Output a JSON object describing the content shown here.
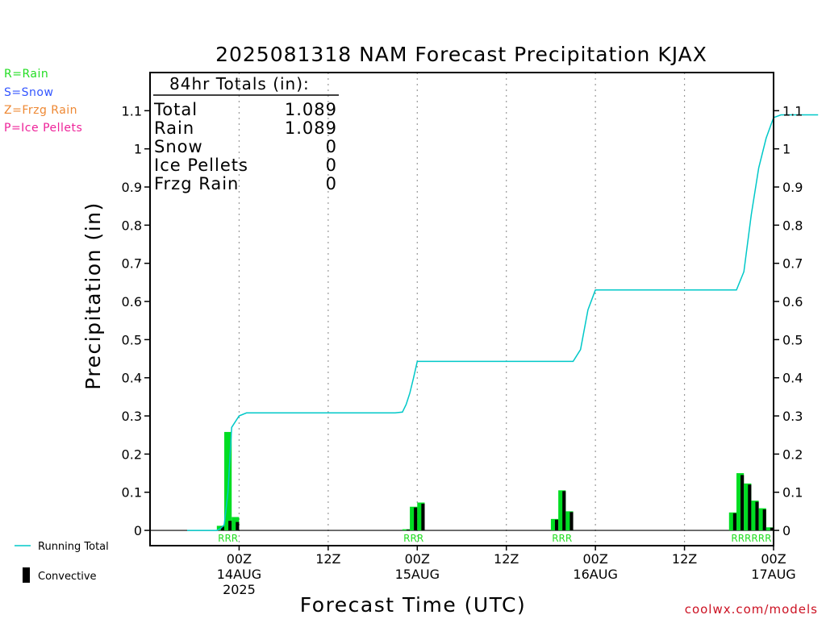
{
  "chart_data": {
    "type": "bar",
    "title": "2025081318 NAM Forecast Precipitation KJAX",
    "xlabel": "Forecast Time (UTC)",
    "ylabel": "Precipitation (in)",
    "ylim": [
      -0.04,
      1.2
    ],
    "yticks": [
      0,
      0.1,
      0.2,
      0.3,
      0.4,
      0.5,
      0.6,
      0.7,
      0.8,
      0.9,
      1,
      1.1
    ],
    "ytick_labels": [
      "0",
      "0.1",
      "0.2",
      "0.3",
      "0.4",
      "0.5",
      "0.6",
      "0.7",
      "0.8",
      "0.9",
      "1",
      "1.1"
    ],
    "x_range_hours": [
      -6,
      78
    ],
    "xticks": [
      {
        "hour": 6,
        "label": [
          "00Z",
          "14AUG",
          "2025"
        ]
      },
      {
        "hour": 18,
        "label": [
          "12Z"
        ]
      },
      {
        "hour": 30,
        "label": [
          "00Z",
          "15AUG"
        ]
      },
      {
        "hour": 42,
        "label": [
          "12Z"
        ]
      },
      {
        "hour": 54,
        "label": [
          "00Z",
          "16AUG"
        ]
      },
      {
        "hour": 66,
        "label": [
          "12Z"
        ]
      },
      {
        "hour": 78,
        "label": [
          "00Z",
          "17AUG"
        ]
      }
    ],
    "legend_types": [
      {
        "text": "R=Rain",
        "color": "#22dd22"
      },
      {
        "text": "S=Snow",
        "color": "#3355ff"
      },
      {
        "text": "Z=Frzg Rain",
        "color": "#ee8833"
      },
      {
        "text": "P=Ice Pellets",
        "color": "#ee2299"
      }
    ],
    "legend_series": {
      "running_total": "Running Total",
      "convective": "Convective"
    },
    "totals_box": {
      "title": "84hr Totals (in):",
      "rows": [
        {
          "label": "Total",
          "value": "1.089"
        },
        {
          "label": "Rain",
          "value": "1.089"
        },
        {
          "label": "Snow",
          "value": "0"
        },
        {
          "label": "Ice Pellets",
          "value": "0"
        },
        {
          "label": "Frzg Rain",
          "value": "0"
        }
      ]
    },
    "precip_bars": [
      {
        "hour": 4,
        "total": 0.012,
        "convective": 0.01
      },
      {
        "hour": 5,
        "total": 0.258,
        "convective": 0.025
      },
      {
        "hour": 6,
        "total": 0.035,
        "convective": 0.022
      },
      {
        "hour": 29,
        "total": 0.003,
        "convective": 0.002
      },
      {
        "hour": 30,
        "total": 0.062,
        "convective": 0.06
      },
      {
        "hour": 31,
        "total": 0.073,
        "convective": 0.07
      },
      {
        "hour": 49,
        "total": 0.03,
        "convective": 0.028
      },
      {
        "hour": 50,
        "total": 0.105,
        "convective": 0.103
      },
      {
        "hour": 51,
        "total": 0.05,
        "convective": 0.048
      },
      {
        "hour": 73,
        "total": 0.047,
        "convective": 0.045
      },
      {
        "hour": 74,
        "total": 0.15,
        "convective": 0.145
      },
      {
        "hour": 75,
        "total": 0.123,
        "convective": 0.12
      },
      {
        "hour": 76,
        "total": 0.078,
        "convective": 0.075
      },
      {
        "hour": 77,
        "total": 0.058,
        "convective": 0.055
      },
      {
        "hour": 78,
        "total": 0.008,
        "convective": 0.007
      }
    ],
    "running_total": {
      "hours": [
        -1,
        2,
        3,
        3.5,
        4,
        4.5,
        5,
        6,
        7,
        14,
        21,
        27,
        28,
        28.5,
        29,
        29.5,
        30,
        31,
        38,
        45,
        51,
        52,
        53,
        54,
        60,
        67,
        73,
        74,
        75,
        76,
        77,
        78,
        79,
        84
      ],
      "values": [
        0,
        0,
        0,
        0.005,
        0.015,
        0.1,
        0.27,
        0.3,
        0.308,
        0.308,
        0.308,
        0.308,
        0.31,
        0.33,
        0.36,
        0.4,
        0.443,
        0.443,
        0.443,
        0.443,
        0.443,
        0.474,
        0.578,
        0.63,
        0.63,
        0.63,
        0.63,
        0.678,
        0.828,
        0.95,
        1.028,
        1.082,
        1.089,
        1.089
      ]
    },
    "ptype_labels": [
      {
        "hour": 5,
        "text": "RRR"
      },
      {
        "hour": 30,
        "text": "RRR"
      },
      {
        "hour": 50,
        "text": "RRR"
      },
      {
        "hour": 75.5,
        "text": "RRRRRR"
      }
    ],
    "credit": "coolwx.com/models",
    "grid": "vertical-dotted",
    "colors": {
      "running_total": "#00c8c8",
      "bar": "#00dd22",
      "convective": "#000000",
      "credit": "#cc1122",
      "ptype_label": "#22dd22"
    }
  }
}
